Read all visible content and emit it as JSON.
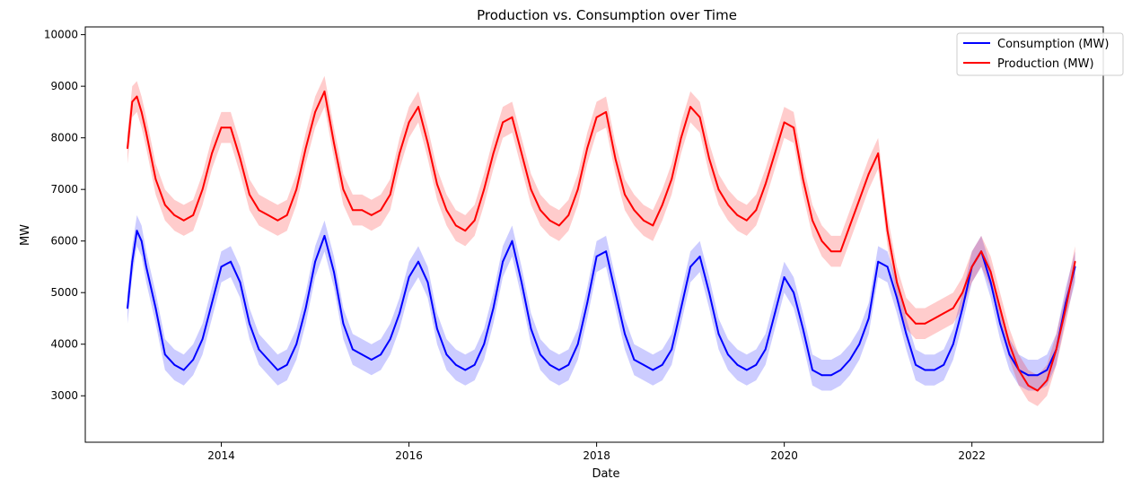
{
  "chart_data": {
    "type": "line",
    "title": "Production vs. Consumption over Time",
    "xlabel": "Date",
    "ylabel": "MW",
    "xlim": [
      2012.55,
      2023.4
    ],
    "ylim": [
      2100,
      10150
    ],
    "x_ticks": [
      {
        "value": 2014,
        "label": "2014"
      },
      {
        "value": 2016,
        "label": "2016"
      },
      {
        "value": 2018,
        "label": "2018"
      },
      {
        "value": 2020,
        "label": "2020"
      },
      {
        "value": 2022,
        "label": "2022"
      }
    ],
    "y_ticks": [
      {
        "value": 3000,
        "label": "3000"
      },
      {
        "value": 4000,
        "label": "4000"
      },
      {
        "value": 5000,
        "label": "5000"
      },
      {
        "value": 6000,
        "label": "6000"
      },
      {
        "value": 7000,
        "label": "7000"
      },
      {
        "value": 8000,
        "label": "8000"
      },
      {
        "value": 9000,
        "label": "9000"
      },
      {
        "value": 10000,
        "label": "10000"
      }
    ],
    "grid": false,
    "legend_position": "top-right",
    "band_width": 300,
    "series": [
      {
        "name": "Consumption (MW)",
        "color": "#0000ff",
        "band_color": "#0000ff",
        "x": [
          2013.0,
          2013.05,
          2013.1,
          2013.15,
          2013.2,
          2013.3,
          2013.4,
          2013.5,
          2013.6,
          2013.7,
          2013.8,
          2013.9,
          2014.0,
          2014.1,
          2014.2,
          2014.3,
          2014.4,
          2014.5,
          2014.6,
          2014.7,
          2014.8,
          2014.9,
          2015.0,
          2015.1,
          2015.2,
          2015.3,
          2015.4,
          2015.5,
          2015.6,
          2015.7,
          2015.8,
          2015.9,
          2016.0,
          2016.1,
          2016.2,
          2016.3,
          2016.4,
          2016.5,
          2016.6,
          2016.7,
          2016.8,
          2016.9,
          2017.0,
          2017.1,
          2017.2,
          2017.3,
          2017.4,
          2017.5,
          2017.6,
          2017.7,
          2017.8,
          2017.9,
          2018.0,
          2018.1,
          2018.2,
          2018.3,
          2018.4,
          2018.5,
          2018.6,
          2018.7,
          2018.8,
          2018.9,
          2019.0,
          2019.1,
          2019.2,
          2019.3,
          2019.4,
          2019.5,
          2019.6,
          2019.7,
          2019.8,
          2019.9,
          2020.0,
          2020.1,
          2020.2,
          2020.3,
          2020.4,
          2020.5,
          2020.6,
          2020.7,
          2020.8,
          2020.9,
          2021.0,
          2021.1,
          2021.2,
          2021.3,
          2021.4,
          2021.5,
          2021.6,
          2021.7,
          2021.8,
          2021.9,
          2022.0,
          2022.1,
          2022.2,
          2022.3,
          2022.4,
          2022.5,
          2022.6,
          2022.7,
          2022.8,
          2022.9,
          2023.0,
          2023.1
        ],
        "values": [
          4700,
          5600,
          6200,
          6000,
          5500,
          4700,
          3800,
          3600,
          3500,
          3700,
          4100,
          4800,
          5500,
          5600,
          5200,
          4400,
          3900,
          3700,
          3500,
          3600,
          4000,
          4700,
          5600,
          6100,
          5400,
          4400,
          3900,
          3800,
          3700,
          3800,
          4100,
          4600,
          5300,
          5600,
          5200,
          4300,
          3800,
          3600,
          3500,
          3600,
          4000,
          4700,
          5600,
          6000,
          5200,
          4300,
          3800,
          3600,
          3500,
          3600,
          4000,
          4800,
          5700,
          5800,
          5000,
          4200,
          3700,
          3600,
          3500,
          3600,
          3900,
          4700,
          5500,
          5700,
          5000,
          4200,
          3800,
          3600,
          3500,
          3600,
          3900,
          4600,
          5300,
          5000,
          4300,
          3500,
          3400,
          3400,
          3500,
          3700,
          4000,
          4500,
          5600,
          5500,
          4900,
          4200,
          3600,
          3500,
          3500,
          3600,
          4000,
          4700,
          5500,
          5800,
          5200,
          4400,
          3800,
          3500,
          3400,
          3400,
          3500,
          3900,
          4800,
          5500
        ]
      },
      {
        "name": "Production (MW)",
        "color": "#ff0000",
        "band_color": "#ff0000",
        "x": [
          2013.0,
          2013.05,
          2013.1,
          2013.15,
          2013.2,
          2013.3,
          2013.4,
          2013.5,
          2013.6,
          2013.7,
          2013.8,
          2013.9,
          2014.0,
          2014.1,
          2014.2,
          2014.3,
          2014.4,
          2014.5,
          2014.6,
          2014.7,
          2014.8,
          2014.9,
          2015.0,
          2015.1,
          2015.2,
          2015.3,
          2015.4,
          2015.5,
          2015.6,
          2015.7,
          2015.8,
          2015.9,
          2016.0,
          2016.1,
          2016.2,
          2016.3,
          2016.4,
          2016.5,
          2016.6,
          2016.7,
          2016.8,
          2016.9,
          2017.0,
          2017.1,
          2017.2,
          2017.3,
          2017.4,
          2017.5,
          2017.6,
          2017.7,
          2017.8,
          2017.9,
          2018.0,
          2018.1,
          2018.2,
          2018.3,
          2018.4,
          2018.5,
          2018.6,
          2018.7,
          2018.8,
          2018.9,
          2019.0,
          2019.1,
          2019.2,
          2019.3,
          2019.4,
          2019.5,
          2019.6,
          2019.7,
          2019.8,
          2019.9,
          2020.0,
          2020.1,
          2020.2,
          2020.3,
          2020.4,
          2020.5,
          2020.6,
          2020.7,
          2020.8,
          2020.9,
          2021.0,
          2021.1,
          2021.2,
          2021.3,
          2021.4,
          2021.5,
          2021.6,
          2021.7,
          2021.8,
          2021.9,
          2022.0,
          2022.1,
          2022.2,
          2022.3,
          2022.4,
          2022.5,
          2022.6,
          2022.7,
          2022.8,
          2022.9,
          2023.0,
          2023.1
        ],
        "values": [
          7800,
          8700,
          8800,
          8500,
          8100,
          7200,
          6700,
          6500,
          6400,
          6500,
          7000,
          7700,
          8200,
          8200,
          7600,
          6900,
          6600,
          6500,
          6400,
          6500,
          7000,
          7800,
          8500,
          8900,
          7900,
          7000,
          6600,
          6600,
          6500,
          6600,
          6900,
          7700,
          8300,
          8600,
          7900,
          7100,
          6600,
          6300,
          6200,
          6400,
          7000,
          7700,
          8300,
          8400,
          7700,
          7000,
          6600,
          6400,
          6300,
          6500,
          7000,
          7800,
          8400,
          8500,
          7600,
          6900,
          6600,
          6400,
          6300,
          6700,
          7200,
          8000,
          8600,
          8400,
          7600,
          7000,
          6700,
          6500,
          6400,
          6600,
          7100,
          7700,
          8300,
          8200,
          7200,
          6400,
          6000,
          5800,
          5800,
          6300,
          6800,
          7300,
          7700,
          6200,
          5200,
          4600,
          4400,
          4400,
          4500,
          4600,
          4700,
          5000,
          5500,
          5800,
          5400,
          4700,
          4000,
          3500,
          3200,
          3100,
          3300,
          3900,
          4700,
          5600
        ]
      }
    ]
  }
}
